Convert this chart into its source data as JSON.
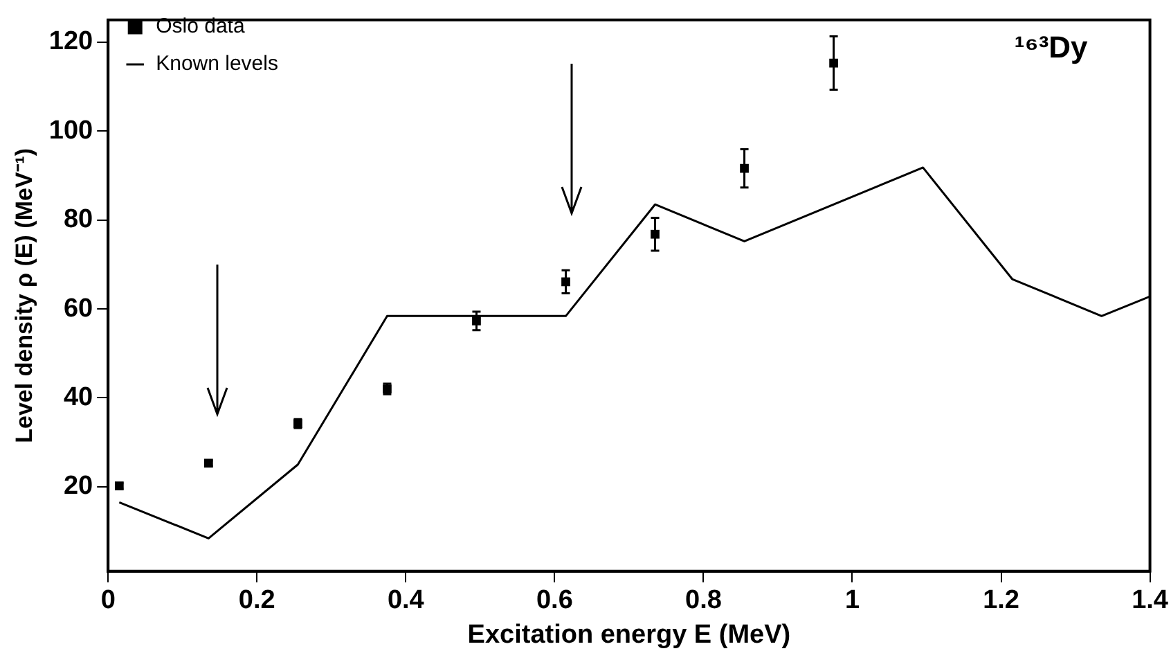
{
  "chart_data": {
    "type": "scatter",
    "xlabel": "Excitation energy E (MeV)",
    "ylabel": "Level density ρ (E) (MeV⁻¹)",
    "annotations": [
      "¹⁶³Dy"
    ],
    "xlim": [
      0,
      1.4
    ],
    "xticks": [
      0,
      0.2,
      0.4,
      0.6,
      0.8,
      1,
      1.2,
      1.4
    ],
    "ylim": [
      1,
      125
    ],
    "yticks": [
      20,
      40,
      60,
      80,
      100,
      120
    ],
    "grid": false,
    "legend": "top left",
    "series": [
      {
        "name": "Oslo data",
        "type": "scatter",
        "marker": "square",
        "color": "#000000",
        "x": [
          0.015,
          0.135,
          0.255,
          0.375,
          0.495,
          0.615,
          0.735,
          0.855,
          0.975
        ],
        "values": [
          20.2,
          25.3,
          34.2,
          42.0,
          57.3,
          66.1,
          76.8,
          91.6,
          115.3
        ],
        "errors": [
          0.6,
          0.6,
          1.0,
          1.2,
          2.1,
          2.6,
          3.7,
          4.3,
          6.0
        ]
      },
      {
        "name": "Known levels",
        "type": "line",
        "marker": "none",
        "line_style": "solid",
        "color": "#000000",
        "x": [
          0.015,
          0.135,
          0.255,
          0.375,
          0.615,
          0.735,
          0.855,
          1.095,
          1.215,
          1.335,
          1.4
        ],
        "values": [
          16.5,
          8.4,
          25.0,
          58.4,
          58.4,
          83.5,
          75.2,
          91.8,
          66.7,
          58.4,
          62.8
        ]
      }
    ]
  }
}
